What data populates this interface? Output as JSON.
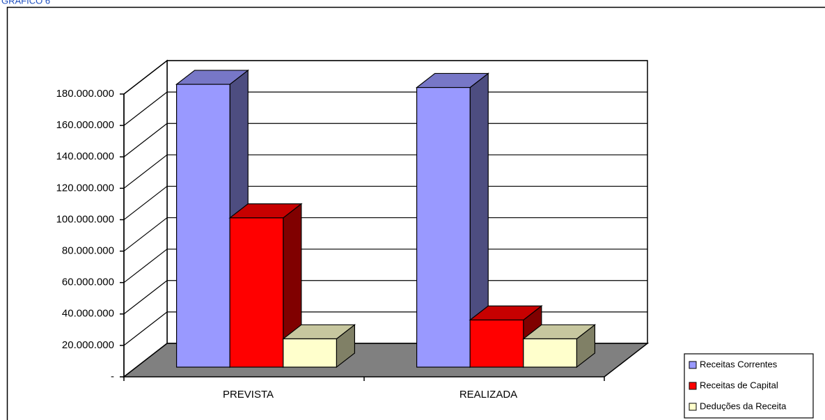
{
  "chart_data": {
    "type": "bar",
    "title": "GRÁFICO 6",
    "categories": [
      "PREVISTA",
      "REALIZADA"
    ],
    "series": [
      {
        "name": "Receitas Correntes",
        "color": "#9999ff",
        "values": [
          180000000,
          178000000
        ]
      },
      {
        "name": "Receitas de Capital",
        "color": "#ff0000",
        "values": [
          95000000,
          30000000
        ]
      },
      {
        "name": "Deduções da Receita",
        "color": "#ffffcc",
        "values": [
          18000000,
          18000000
        ]
      }
    ],
    "ylim": [
      0,
      180000000
    ],
    "yticks": [
      {
        "value": 0,
        "label": "-"
      },
      {
        "value": 20000000,
        "label": "20.000.000"
      },
      {
        "value": 40000000,
        "label": "40.000.000"
      },
      {
        "value": 60000000,
        "label": "60.000.000"
      },
      {
        "value": 80000000,
        "label": "80.000.000"
      },
      {
        "value": 100000000,
        "label": "100.000.000"
      },
      {
        "value": 120000000,
        "label": "120.000.000"
      },
      {
        "value": 140000000,
        "label": "140.000.000"
      },
      {
        "value": 160000000,
        "label": "160.000.000"
      },
      {
        "value": 180000000,
        "label": "180.000.000"
      }
    ],
    "grid": true,
    "legend": "right"
  }
}
